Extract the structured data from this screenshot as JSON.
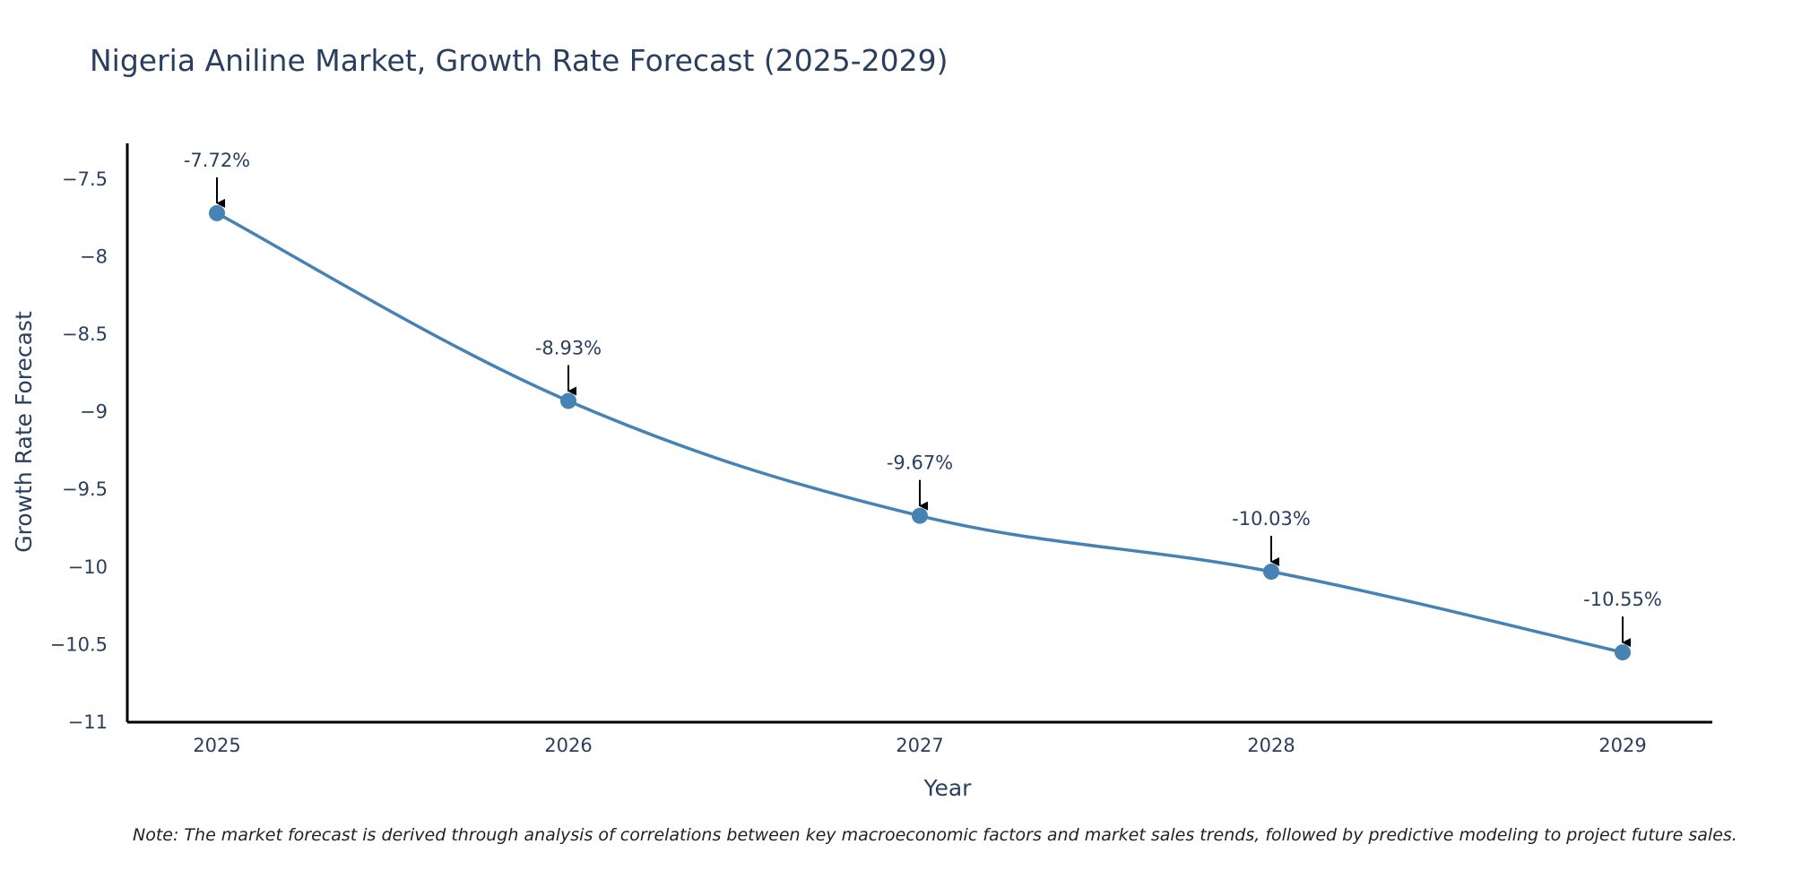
{
  "title": "Nigeria Aniline Market, Growth Rate Forecast (2025-2029)",
  "note": "Note: The market forecast is derived through analysis of correlations between key macroeconomic factors and market sales trends, followed by predictive modeling to project future sales.",
  "colors": {
    "line": "#4682b4",
    "marker": "#4682b4",
    "axis": "#000000",
    "text": "#2a3f5f",
    "arrow": "#000000"
  },
  "chart_data": {
    "type": "line",
    "title": "Nigeria Aniline Market, Growth Rate Forecast (2025-2029)",
    "xlabel": "Year",
    "ylabel": "Growth Rate Forecast",
    "categories": [
      "2025",
      "2026",
      "2027",
      "2028",
      "2029"
    ],
    "values": [
      -7.72,
      -8.93,
      -9.67,
      -10.03,
      -10.55
    ],
    "data_labels": [
      "-7.72%",
      "-8.93%",
      "-9.67%",
      "-10.03%",
      "-10.55%"
    ],
    "ylim": [
      -11,
      -7.27
    ],
    "yticks": [
      -7.5,
      -8,
      -8.5,
      -9,
      -9.5,
      -10,
      -10.5,
      -11
    ],
    "ytick_labels": [
      "−7.5",
      "−8",
      "−8.5",
      "−9",
      "−9.5",
      "−10",
      "−10.5",
      "−11"
    ],
    "grid": false,
    "legend": "none"
  }
}
